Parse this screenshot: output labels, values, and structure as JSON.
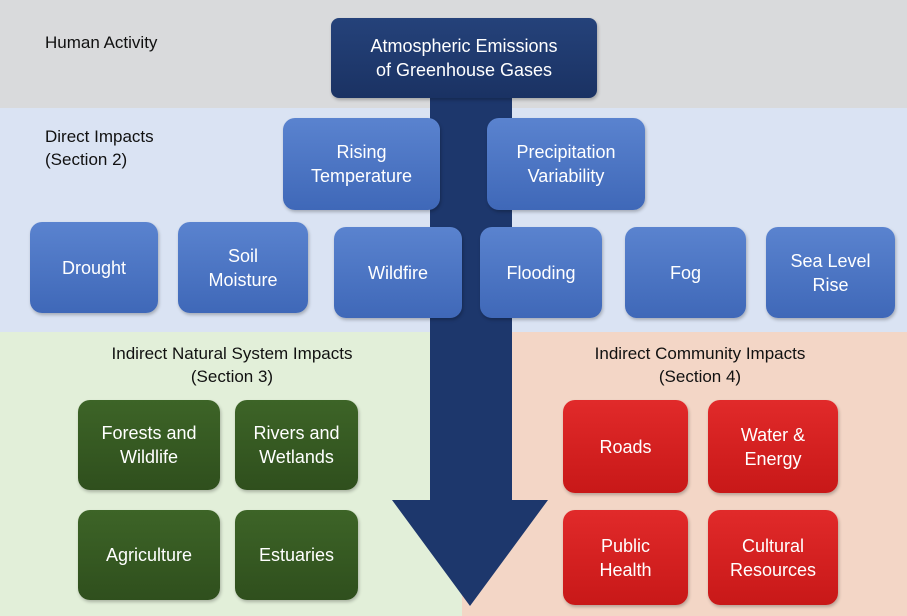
{
  "bands": [
    {
      "label": [
        "Human Activity"
      ]
    },
    {
      "label": [
        "Direct Impacts",
        "(Section 2)"
      ]
    },
    {
      "label": [
        "Indirect Natural System Impacts",
        "(Section 3)"
      ]
    },
    {
      "label": [
        "Indirect Community Impacts",
        "(Section 4)"
      ]
    }
  ],
  "source": {
    "label": [
      "Atmospheric Emissions",
      "of Greenhouse Gases"
    ]
  },
  "direct": [
    {
      "label": [
        "Rising",
        "Temperature"
      ]
    },
    {
      "label": [
        "Precipitation",
        "Variability"
      ]
    }
  ],
  "impacts": [
    {
      "label": [
        "Drought"
      ]
    },
    {
      "label": [
        "Soil",
        "Moisture"
      ]
    },
    {
      "label": [
        "Wildfire"
      ]
    },
    {
      "label": [
        "Flooding"
      ]
    },
    {
      "label": [
        "Fog"
      ]
    },
    {
      "label": [
        "Sea Level",
        "Rise"
      ]
    }
  ],
  "natural": [
    {
      "label": [
        "Forests and",
        "Wildlife"
      ]
    },
    {
      "label": [
        "Rivers and",
        "Wetlands"
      ]
    },
    {
      "label": [
        "Agriculture"
      ]
    },
    {
      "label": [
        "Estuaries"
      ]
    }
  ],
  "community": [
    {
      "label": [
        "Roads"
      ]
    },
    {
      "label": [
        "Water &",
        "Energy"
      ]
    },
    {
      "label": [
        "Public",
        "Health"
      ]
    },
    {
      "label": [
        "Cultural",
        "Resources"
      ]
    }
  ]
}
